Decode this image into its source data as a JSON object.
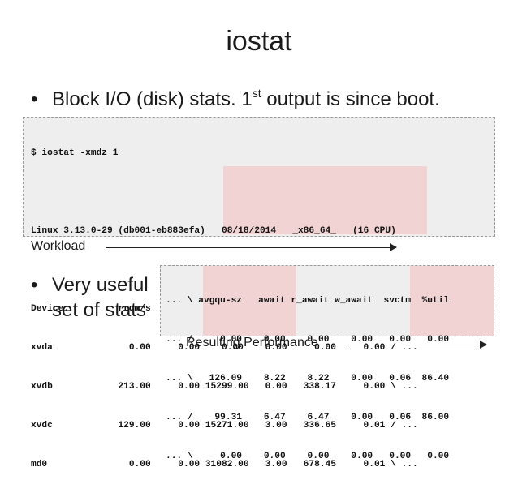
{
  "title": "iostat",
  "bullets": {
    "first": {
      "prefix": "Block I/O (disk) stats. 1",
      "sup": "st",
      "suffix": " output is since boot."
    },
    "second": {
      "line1": "Very useful",
      "line2": "set of stats"
    }
  },
  "bullet_char": "•",
  "terminal1": {
    "lines": [
      "$ iostat -xmdz 1",
      "",
      "Linux 3.13.0-29 (db001-eb883efa)   08/18/2014   _x86_64_   (16 CPU)",
      "",
      "Device:         rrqm/s   wrqm/s     r/s     w/s    rMB/s    wMB/s \\ ...",
      "xvda              0.00     0.00    0.00    0.00     0.00     0.00 / ...",
      "xvdb            213.00     0.00 15299.00   0.00   338.17     0.00 \\ ...",
      "xvdc            129.00     0.00 15271.00   3.00   336.65     0.01 / ...",
      "md0               0.00     0.00 31082.00   3.00   678.45     0.01 \\ ..."
    ]
  },
  "terminal2": {
    "lines": [
      "... \\ avgqu-sz   await r_await w_await  svctm  %util",
      "... /     0.00    0.00    0.00    0.00   0.00   0.00",
      "... \\   126.09    8.22    8.22    0.00   0.06  86.40",
      "... /    99.31    6.47    6.47    0.00   0.06  86.00",
      "... \\     0.00    0.00    0.00    0.00   0.00   0.00"
    ]
  },
  "labels": {
    "workload": "Workload",
    "result": "Resulting Performance"
  },
  "colors": {
    "terminal_bg": "#eeeeee",
    "highlight": "#f1d3d3"
  }
}
